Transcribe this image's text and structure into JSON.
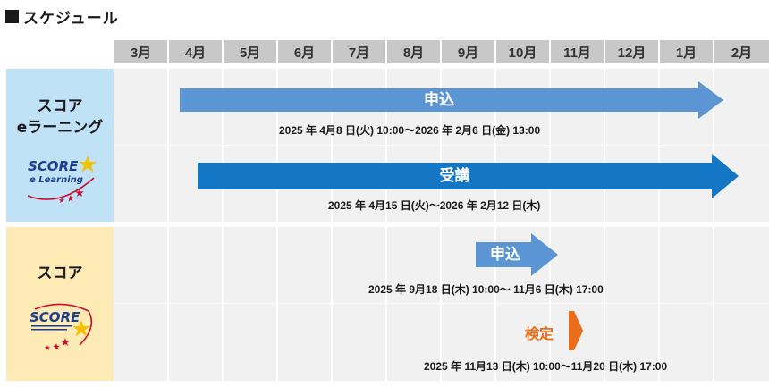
{
  "title": "スケジュール",
  "months": [
    "3月",
    "4月",
    "5月",
    "6月",
    "7月",
    "8月",
    "9月",
    "10月",
    "11月",
    "12月",
    "1月",
    "2月"
  ],
  "sections": {
    "elearning": {
      "label_line1": "スコア",
      "label_line2": "eラーニング",
      "logo_text1": "SCORE",
      "logo_text2": "e Learning"
    },
    "score": {
      "label": "スコア",
      "logo_text": "SCORE"
    }
  },
  "rows": {
    "el_apply": {
      "label": "申込",
      "dates": "2025 年 4月8 日(火) 10:00～2026 年 2月6 日(金) 13:00"
    },
    "el_attend": {
      "label": "受講",
      "dates": "2025 年 4月15 日(火)～2026 年 2月12 日(木)"
    },
    "sc_apply": {
      "label": "申込",
      "dates": "2025 年 9月18 日(木) 10:00～ 11月6 日(木) 17:00"
    },
    "sc_exam": {
      "label": "検定",
      "dates": "2025 年 11月13 日(木) 10:00～11月20 日(木) 17:00"
    }
  },
  "colors": {
    "month_header": "#c8c8c8",
    "elearning_bg": "#bfe2f7",
    "score_bg": "#fdeab5",
    "cell_bg": "#f1f1f1",
    "arrow_light_blue": "#5b95d4",
    "arrow_dark_blue": "#1377c5",
    "arrow_orange": "#e86e1c"
  }
}
